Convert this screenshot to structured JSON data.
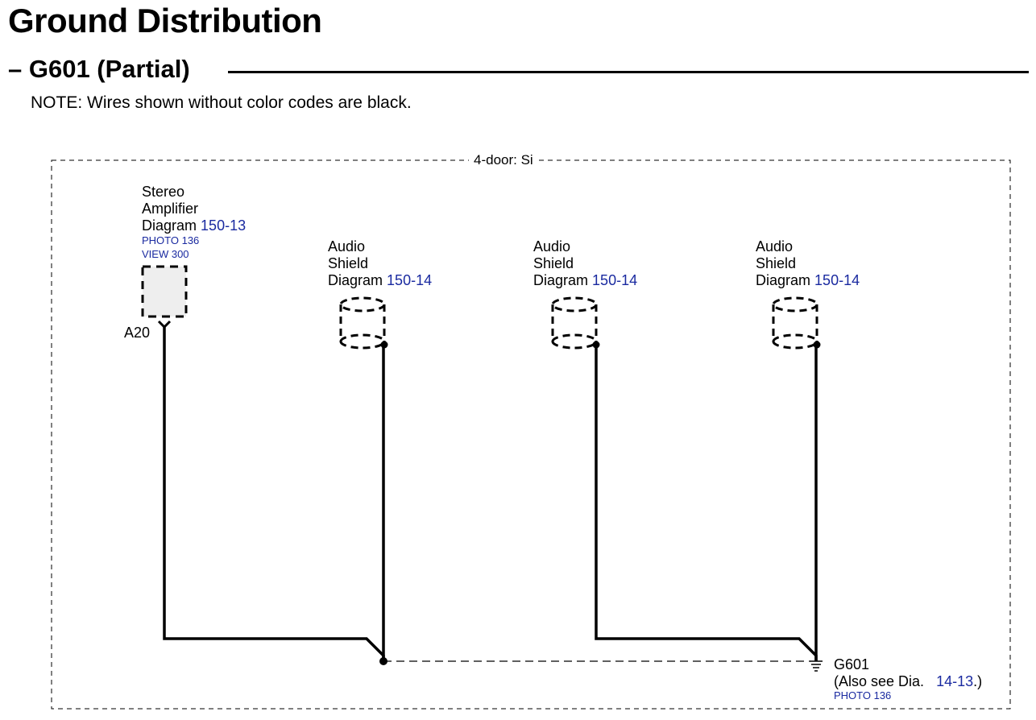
{
  "page": {
    "title": "Ground Distribution",
    "section_title": "– G601 (Partial)",
    "note": "NOTE: Wires shown without color codes are black."
  },
  "diagram": {
    "frame_label": "4-door: Si",
    "amplifier": {
      "line1": "Stereo",
      "line2": "Amplifier",
      "diagram_prefix": "Diagram",
      "diagram_ref": "150-13",
      "photo": "PHOTO 136",
      "view": "VIEW 300",
      "pin": "A20"
    },
    "shields": [
      {
        "line1": "Audio",
        "line2": "Shield",
        "diagram_prefix": "Diagram",
        "diagram_ref": "150-14"
      },
      {
        "line1": "Audio",
        "line2": "Shield",
        "diagram_prefix": "Diagram",
        "diagram_ref": "150-14"
      },
      {
        "line1": "Audio",
        "line2": "Shield",
        "diagram_prefix": "Diagram",
        "diagram_ref": "150-14"
      }
    ],
    "ground": {
      "name": "G601",
      "also_see_prefix": "(Also see Dia.",
      "also_see_ref": "14-13",
      "also_see_suffix": ".)",
      "photo": "PHOTO 136"
    },
    "colors": {
      "link": "#1a2aa0",
      "wire": "#000000",
      "component_fill": "#eeeeee"
    }
  }
}
